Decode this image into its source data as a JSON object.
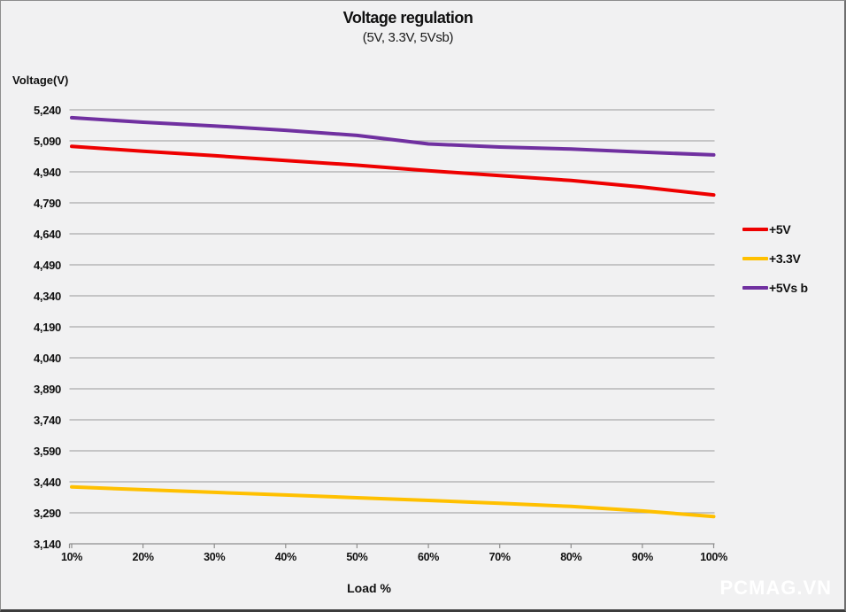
{
  "watermark": "PCMAG.VN",
  "chart_data": {
    "type": "line",
    "title": "Voltage regulation",
    "subtitle": "(5V, 3.3V, 5Vsb)",
    "ylabel": "Voltage(V)",
    "xlabel": "Load %",
    "categories": [
      "10%",
      "20%",
      "30%",
      "40%",
      "50%",
      "60%",
      "70%",
      "80%",
      "90%",
      "100%"
    ],
    "ylim": [
      3140,
      5240
    ],
    "y_step": 150,
    "grid": true,
    "legend_position": "right",
    "grid_color": "#ababab",
    "axis_color": "#8e8e8e",
    "series": [
      {
        "name": "+5V",
        "color": "#ee0000",
        "values": [
          5063,
          5040,
          5018,
          4995,
          4972,
          4945,
          4922,
          4898,
          4866,
          4828
        ]
      },
      {
        "name": "+3.3V",
        "color": "#ffc000",
        "values": [
          3415,
          3402,
          3389,
          3376,
          3363,
          3350,
          3336,
          3321,
          3299,
          3272
        ]
      },
      {
        "name": "+5Vs b",
        "color": "#7030a0",
        "values": [
          5202,
          5180,
          5162,
          5141,
          5116,
          5075,
          5060,
          5050,
          5035,
          5022
        ]
      }
    ]
  }
}
